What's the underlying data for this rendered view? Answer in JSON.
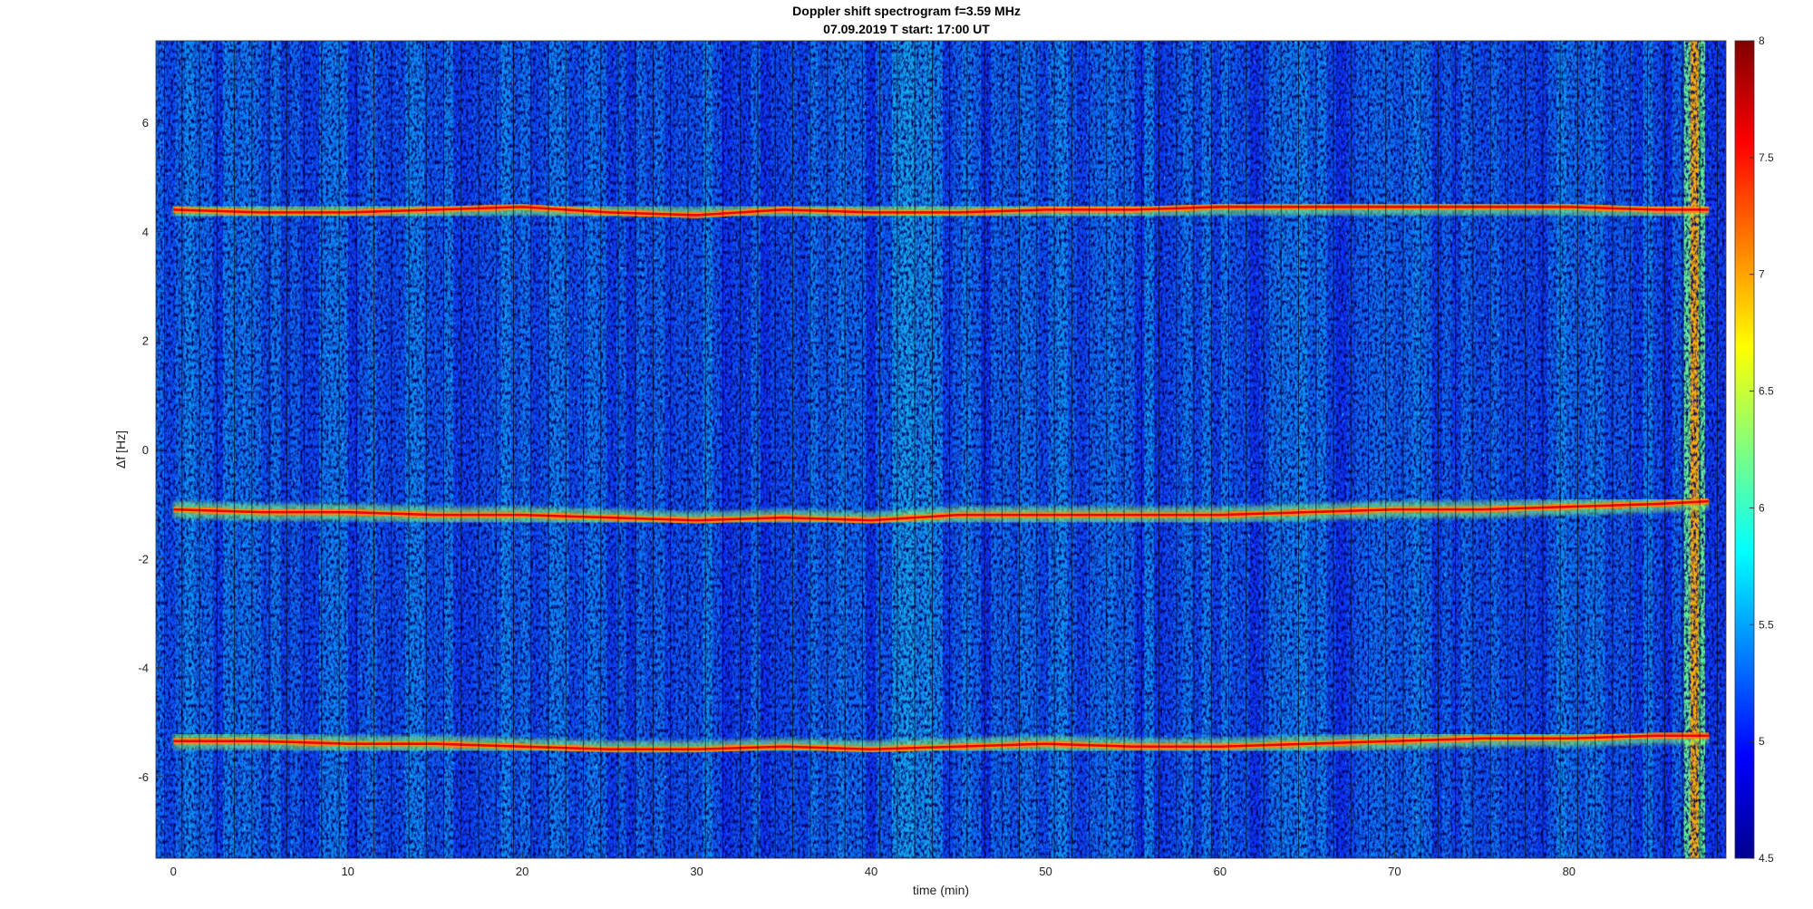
{
  "chart_data": {
    "type": "heatmap",
    "title": "Doppler shift spectrogram f=3.59 MHz",
    "subtitle": "07.09.2019   T start: 17:00 UT",
    "xlabel": "time (min)",
    "ylabel": "Δf [Hz]",
    "xlim": [
      -1,
      89
    ],
    "ylim": [
      -7.5,
      7.5
    ],
    "xticks": [
      0,
      10,
      20,
      30,
      40,
      50,
      60,
      70,
      80
    ],
    "yticks": [
      -6,
      -4,
      -2,
      0,
      2,
      4,
      6
    ],
    "grid": false,
    "colormap": "jet",
    "colorbar": {
      "min": 4.5,
      "max": 8,
      "ticks": [
        4.5,
        5,
        5.5,
        6,
        6.5,
        7,
        7.5,
        8
      ]
    },
    "traces": [
      {
        "x": [
          0,
          5,
          10,
          15,
          20,
          25,
          30,
          35,
          40,
          45,
          50,
          55,
          60,
          65,
          70,
          75,
          80,
          85,
          88
        ],
        "y": [
          4.4,
          4.35,
          4.35,
          4.4,
          4.45,
          4.35,
          4.3,
          4.4,
          4.35,
          4.35,
          4.4,
          4.4,
          4.45,
          4.45,
          4.45,
          4.45,
          4.45,
          4.4,
          4.4
        ]
      },
      {
        "x": [
          0,
          5,
          10,
          15,
          20,
          25,
          30,
          35,
          40,
          45,
          50,
          55,
          60,
          65,
          70,
          75,
          80,
          85,
          88
        ],
        "y": [
          -1.1,
          -1.15,
          -1.15,
          -1.2,
          -1.2,
          -1.25,
          -1.3,
          -1.25,
          -1.3,
          -1.2,
          -1.2,
          -1.2,
          -1.2,
          -1.15,
          -1.1,
          -1.1,
          -1.05,
          -1.0,
          -0.95
        ]
      },
      {
        "x": [
          0,
          5,
          10,
          15,
          20,
          25,
          30,
          35,
          40,
          45,
          50,
          55,
          60,
          65,
          70,
          75,
          80,
          85,
          88
        ],
        "y": [
          -5.35,
          -5.35,
          -5.4,
          -5.4,
          -5.45,
          -5.5,
          -5.5,
          -5.45,
          -5.5,
          -5.45,
          -5.4,
          -5.45,
          -5.45,
          -5.4,
          -5.35,
          -5.3,
          -5.3,
          -5.25,
          -5.25
        ]
      }
    ],
    "bright_band_x": 87.2
  }
}
